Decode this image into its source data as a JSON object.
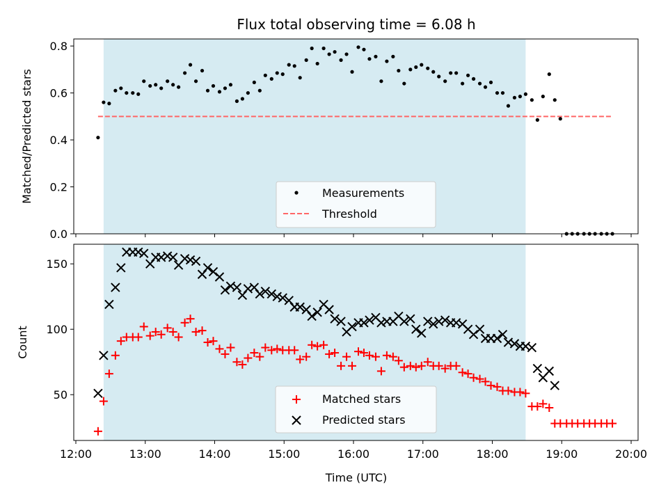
{
  "chart_data": [
    {
      "type": "scatter",
      "title": "Flux total observing time = 6.08 h",
      "xlabel": "",
      "ylabel": "Matched/Predicted stars",
      "xlim": [
        11.97,
        20.1
      ],
      "ylim": [
        0.0,
        0.83
      ],
      "x_ticks": [
        12,
        13,
        14,
        15,
        16,
        17,
        18,
        19,
        20
      ],
      "y_ticks": [
        0.0,
        0.2,
        0.4,
        0.6,
        0.8
      ],
      "y_tick_labels": [
        "0.0",
        "0.2",
        "0.4",
        "0.6",
        "0.8"
      ],
      "shaded_span": {
        "x_start": 12.4,
        "x_end": 18.48,
        "color": "#add8e6"
      },
      "legend": {
        "position": "lower-center",
        "entries": [
          "Measurements",
          "Threshold"
        ]
      },
      "series": [
        {
          "name": "Measurements",
          "kind": "dot",
          "color": "#000000",
          "x": [
            12.32,
            12.4,
            12.48,
            12.57,
            12.65,
            12.73,
            12.82,
            12.9,
            12.98,
            13.07,
            13.15,
            13.23,
            13.32,
            13.4,
            13.48,
            13.57,
            13.65,
            13.73,
            13.82,
            13.9,
            13.98,
            14.07,
            14.15,
            14.23,
            14.32,
            14.4,
            14.48,
            14.57,
            14.65,
            14.73,
            14.82,
            14.9,
            14.98,
            15.07,
            15.15,
            15.23,
            15.32,
            15.4,
            15.48,
            15.57,
            15.65,
            15.73,
            15.82,
            15.9,
            15.98,
            16.07,
            16.15,
            16.23,
            16.32,
            16.4,
            16.48,
            16.57,
            16.65,
            16.73,
            16.82,
            16.9,
            16.98,
            17.07,
            17.15,
            17.23,
            17.32,
            17.4,
            17.48,
            17.57,
            17.65,
            17.73,
            17.82,
            17.9,
            17.98,
            18.07,
            18.15,
            18.23,
            18.32,
            18.4,
            18.48,
            18.57,
            18.65,
            18.73,
            18.82,
            18.9,
            18.98,
            19.07,
            19.15,
            19.23,
            19.32,
            19.4,
            19.48,
            19.57,
            19.65,
            19.73
          ],
          "y": [
            0.41,
            0.56,
            0.555,
            0.61,
            0.62,
            0.6,
            0.6,
            0.595,
            0.65,
            0.63,
            0.635,
            0.62,
            0.65,
            0.635,
            0.625,
            0.685,
            0.72,
            0.65,
            0.695,
            0.61,
            0.63,
            0.605,
            0.62,
            0.635,
            0.565,
            0.575,
            0.6,
            0.645,
            0.61,
            0.675,
            0.66,
            0.685,
            0.68,
            0.72,
            0.715,
            0.665,
            0.74,
            0.79,
            0.725,
            0.79,
            0.765,
            0.775,
            0.74,
            0.765,
            0.69,
            0.795,
            0.785,
            0.745,
            0.755,
            0.65,
            0.735,
            0.755,
            0.695,
            0.64,
            0.7,
            0.71,
            0.72,
            0.705,
            0.69,
            0.67,
            0.65,
            0.685,
            0.685,
            0.64,
            0.675,
            0.66,
            0.64,
            0.625,
            0.645,
            0.6,
            0.6,
            0.545,
            0.58,
            0.585,
            0.595,
            0.57,
            0.485,
            0.585,
            0.68,
            0.57,
            0.49,
            0.0,
            0.0,
            0.0,
            0.0,
            0.0,
            0.0,
            0.0,
            0.0,
            0.0
          ]
        },
        {
          "name": "Threshold",
          "kind": "dashed-line",
          "color": "#ff6666",
          "x": [
            12.32,
            19.73
          ],
          "y": [
            0.5,
            0.5
          ]
        }
      ]
    },
    {
      "type": "scatter",
      "title": "",
      "xlabel": "Time (UTC)",
      "ylabel": "Count",
      "xlim": [
        11.97,
        20.1
      ],
      "ylim": [
        15,
        165
      ],
      "x_ticks": [
        12,
        13,
        14,
        15,
        16,
        17,
        18,
        19,
        20
      ],
      "x_tick_labels": [
        "12:00",
        "13:00",
        "14:00",
        "15:00",
        "16:00",
        "17:00",
        "18:00",
        "19:00",
        "20:00"
      ],
      "y_ticks": [
        50,
        100,
        150
      ],
      "y_tick_labels": [
        "50",
        "100",
        "150"
      ],
      "shaded_span": {
        "x_start": 12.4,
        "x_end": 18.48,
        "color": "#add8e6"
      },
      "legend": {
        "position": "lower-center",
        "entries": [
          "Matched stars",
          "Predicted stars"
        ]
      },
      "series": [
        {
          "name": "Matched stars",
          "kind": "plus",
          "color": "#ff0000",
          "x": [
            12.32,
            12.4,
            12.48,
            12.57,
            12.65,
            12.73,
            12.82,
            12.9,
            12.98,
            13.07,
            13.15,
            13.23,
            13.32,
            13.4,
            13.48,
            13.57,
            13.65,
            13.73,
            13.82,
            13.9,
            13.98,
            14.07,
            14.15,
            14.23,
            14.32,
            14.4,
            14.48,
            14.57,
            14.65,
            14.73,
            14.82,
            14.9,
            14.98,
            15.07,
            15.15,
            15.23,
            15.32,
            15.4,
            15.48,
            15.57,
            15.65,
            15.73,
            15.82,
            15.9,
            15.98,
            16.07,
            16.15,
            16.23,
            16.32,
            16.4,
            16.48,
            16.57,
            16.65,
            16.73,
            16.82,
            16.9,
            16.98,
            17.07,
            17.15,
            17.23,
            17.32,
            17.4,
            17.48,
            17.57,
            17.65,
            17.73,
            17.82,
            17.9,
            17.98,
            18.07,
            18.15,
            18.23,
            18.32,
            18.4,
            18.48,
            18.57,
            18.65,
            18.73,
            18.82,
            18.9,
            18.98,
            19.07,
            19.15,
            19.23,
            19.32,
            19.4,
            19.48,
            19.57,
            19.65,
            19.73
          ],
          "y": [
            22,
            45,
            66,
            80,
            91,
            94,
            94,
            94,
            102,
            95,
            98,
            96,
            101,
            98,
            94,
            105,
            108,
            98,
            99,
            90,
            91,
            85,
            81,
            86,
            75,
            73,
            78,
            82,
            79,
            86,
            84,
            85,
            84,
            84,
            84,
            77,
            79,
            88,
            87,
            88,
            81,
            82,
            72,
            79,
            72,
            83,
            82,
            80,
            79,
            68,
            80,
            79,
            76,
            71,
            72,
            71,
            72,
            75,
            72,
            72,
            70,
            72,
            72,
            67,
            66,
            63,
            62,
            60,
            57,
            56,
            53,
            53,
            52,
            52,
            51,
            41,
            41,
            43,
            40,
            28,
            28,
            28,
            28,
            28,
            28,
            28,
            28,
            28,
            28,
            28
          ]
        },
        {
          "name": "Predicted stars",
          "kind": "cross",
          "color": "#000000",
          "x": [
            12.32,
            12.4,
            12.48,
            12.57,
            12.65,
            12.73,
            12.82,
            12.9,
            12.98,
            13.07,
            13.15,
            13.23,
            13.32,
            13.4,
            13.48,
            13.57,
            13.65,
            13.73,
            13.82,
            13.9,
            13.98,
            14.07,
            14.15,
            14.23,
            14.32,
            14.4,
            14.48,
            14.57,
            14.65,
            14.73,
            14.82,
            14.9,
            14.98,
            15.07,
            15.15,
            15.23,
            15.32,
            15.4,
            15.48,
            15.57,
            15.65,
            15.73,
            15.82,
            15.9,
            15.98,
            16.07,
            16.15,
            16.23,
            16.32,
            16.4,
            16.48,
            16.57,
            16.65,
            16.73,
            16.82,
            16.9,
            16.98,
            17.07,
            17.15,
            17.23,
            17.32,
            17.4,
            17.48,
            17.57,
            17.65,
            17.73,
            17.82,
            17.9,
            17.98,
            18.07,
            18.15,
            18.23,
            18.32,
            18.4,
            18.48,
            18.57,
            18.65,
            18.73,
            18.82,
            18.9
          ],
          "y": [
            51,
            80,
            119,
            132,
            147,
            159,
            159,
            159,
            158,
            150,
            155,
            155,
            156,
            155,
            149,
            154,
            153,
            152,
            142,
            147,
            144,
            140,
            130,
            133,
            132,
            126,
            131,
            132,
            127,
            129,
            127,
            125,
            124,
            122,
            117,
            117,
            115,
            110,
            113,
            119,
            115,
            108,
            106,
            98,
            102,
            105,
            105,
            107,
            109,
            105,
            106,
            106,
            110,
            106,
            108,
            100,
            97,
            106,
            104,
            106,
            107,
            105,
            105,
            104,
            100,
            96,
            100,
            93,
            93,
            93,
            96,
            90,
            89,
            87,
            87,
            86,
            70,
            63,
            68,
            57
          ]
        }
      ]
    }
  ]
}
